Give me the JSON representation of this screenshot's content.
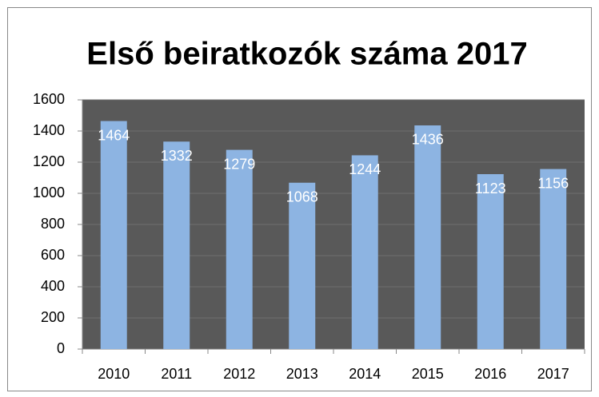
{
  "chart_data": {
    "type": "bar",
    "title": "Első beiratkozók száma 2017",
    "categories": [
      "2010",
      "2011",
      "2012",
      "2013",
      "2014",
      "2015",
      "2016",
      "2017"
    ],
    "values": [
      1464,
      1332,
      1279,
      1068,
      1244,
      1436,
      1123,
      1156
    ],
    "color": "#8db4e2",
    "background": "#595959",
    "ylim": [
      0,
      1600
    ],
    "yticks": [
      0,
      200,
      400,
      600,
      800,
      1000,
      1200,
      1400,
      1600
    ],
    "grid": true
  }
}
